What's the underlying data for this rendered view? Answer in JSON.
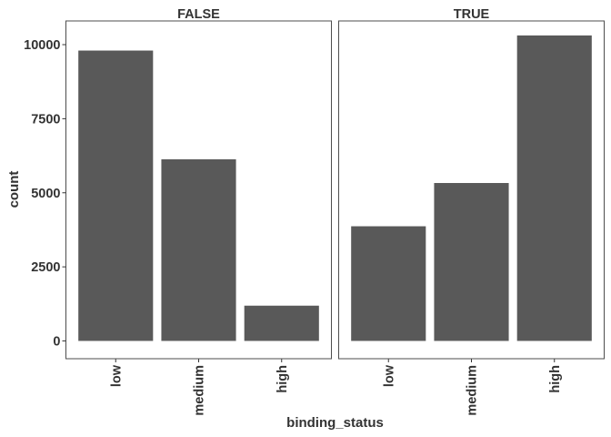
{
  "chart_data": {
    "type": "bar",
    "facet_variable": "",
    "xlabel": "binding_status",
    "ylabel": "count",
    "categories": [
      "low",
      "medium",
      "high"
    ],
    "ylim": [
      -600,
      10800
    ],
    "yticks": [
      0,
      2500,
      5000,
      7500,
      10000
    ],
    "ytick_labels": [
      "0",
      "2500",
      "5000",
      "7500",
      "10000"
    ],
    "bar_color": "#595959",
    "grid": false,
    "facets": [
      {
        "title": "FALSE",
        "values": [
          9800,
          6130,
          1190
        ]
      },
      {
        "title": "TRUE",
        "values": [
          3870,
          5330,
          10310
        ]
      }
    ]
  }
}
